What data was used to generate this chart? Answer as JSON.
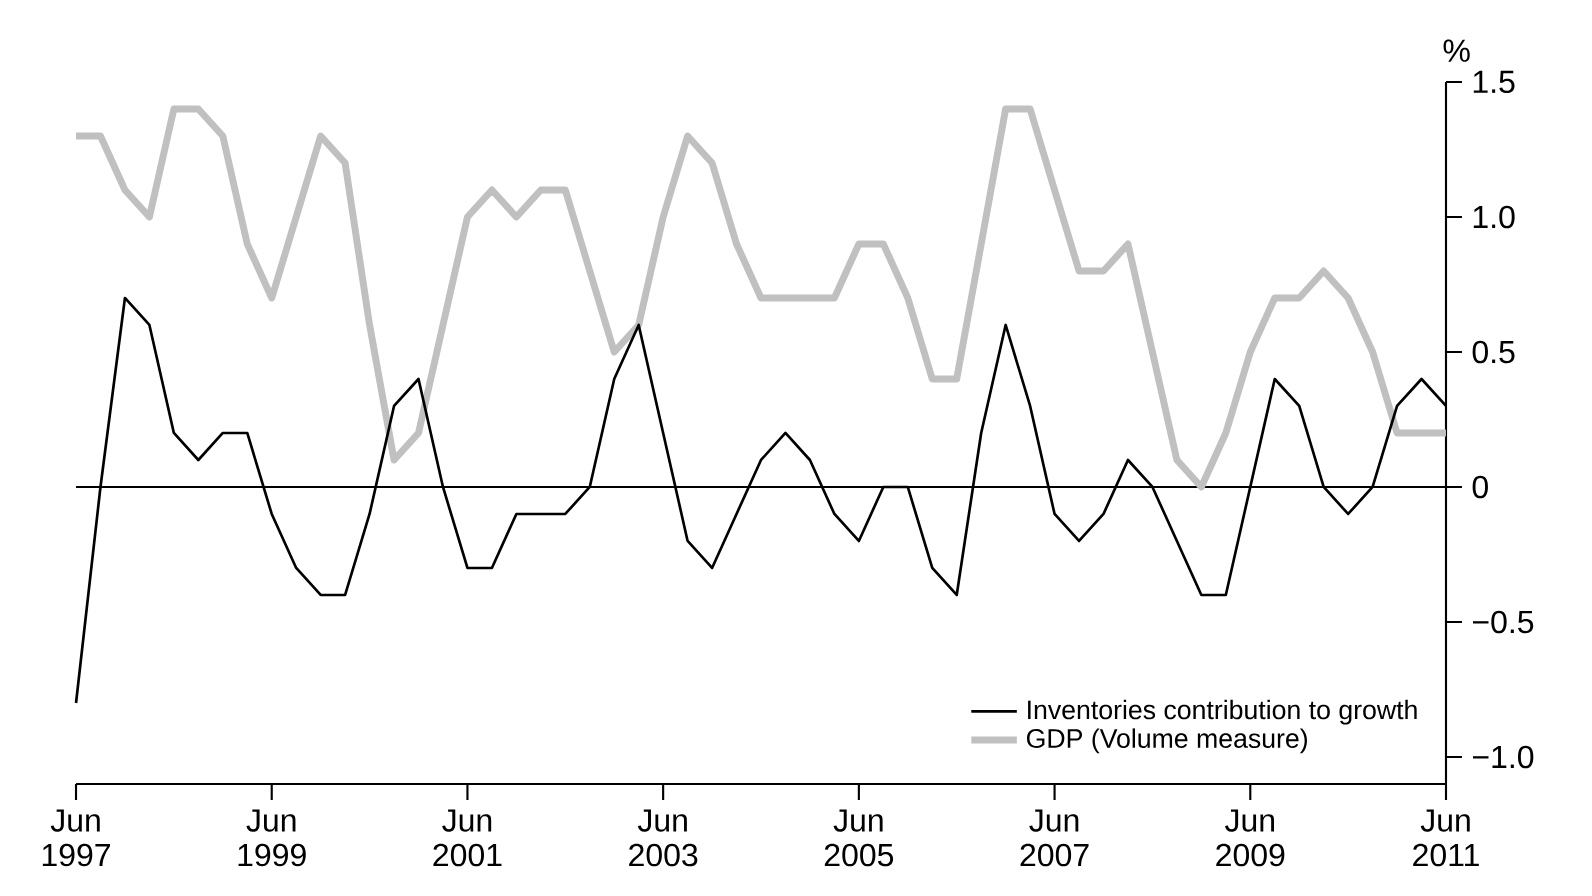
{
  "chart_data": {
    "type": "line",
    "x": [
      "1997-06",
      "1997-09",
      "1997-12",
      "1998-03",
      "1998-06",
      "1998-09",
      "1998-12",
      "1999-03",
      "1999-06",
      "1999-09",
      "1999-12",
      "2000-03",
      "2000-06",
      "2000-09",
      "2000-12",
      "2001-03",
      "2001-06",
      "2001-09",
      "2001-12",
      "2002-03",
      "2002-06",
      "2002-09",
      "2002-12",
      "2003-03",
      "2003-06",
      "2003-09",
      "2003-12",
      "2004-03",
      "2004-06",
      "2004-09",
      "2004-12",
      "2005-03",
      "2005-06",
      "2005-09",
      "2005-12",
      "2006-03",
      "2006-06",
      "2006-09",
      "2006-12",
      "2007-03",
      "2007-06",
      "2007-09",
      "2007-12",
      "2008-03",
      "2008-06",
      "2008-09",
      "2008-12",
      "2009-03",
      "2009-06",
      "2009-09",
      "2009-12",
      "2010-03",
      "2010-06",
      "2010-09",
      "2010-12",
      "2011-03",
      "2011-06"
    ],
    "series": [
      {
        "name": "Inventories contribution to growth",
        "color": "#000000",
        "values": [
          -0.8,
          0.0,
          0.7,
          0.6,
          0.2,
          0.1,
          0.2,
          0.2,
          -0.1,
          -0.3,
          -0.4,
          -0.4,
          -0.1,
          0.3,
          0.4,
          0.0,
          -0.3,
          -0.3,
          -0.1,
          -0.1,
          -0.1,
          0.0,
          0.4,
          0.6,
          0.2,
          -0.2,
          -0.3,
          -0.1,
          0.1,
          0.2,
          0.1,
          -0.1,
          -0.2,
          0.0,
          0.0,
          -0.3,
          -0.4,
          0.2,
          0.6,
          0.3,
          -0.1,
          -0.2,
          -0.1,
          0.1,
          0.0,
          -0.2,
          -0.4,
          -0.4,
          0.0,
          0.4,
          0.3,
          0.0,
          -0.1,
          0.0,
          0.3,
          0.4,
          0.3
        ]
      },
      {
        "name": "GDP (Volume measure)",
        "color": "#c0c0c0",
        "values": [
          1.3,
          1.3,
          1.1,
          1.0,
          1.4,
          1.4,
          1.3,
          0.9,
          0.7,
          1.0,
          1.3,
          1.2,
          0.6,
          0.1,
          0.2,
          0.6,
          1.0,
          1.1,
          1.0,
          1.1,
          1.1,
          0.8,
          0.5,
          0.6,
          1.0,
          1.3,
          1.2,
          0.9,
          0.7,
          0.7,
          0.7,
          0.7,
          0.9,
          0.9,
          0.7,
          0.4,
          0.4,
          0.9,
          1.4,
          1.4,
          1.1,
          0.8,
          0.8,
          0.9,
          0.5,
          0.1,
          0.0,
          0.2,
          0.5,
          0.7,
          0.7,
          0.8,
          0.7,
          0.5,
          0.2,
          0.2,
          0.2
        ]
      }
    ],
    "ylabel": "%",
    "xlim": [
      "1997-06",
      "2011-06"
    ],
    "xticks": [
      {
        "value": "1997-06",
        "label": "Jun 1997"
      },
      {
        "value": "1999-06",
        "label": "Jun 1999"
      },
      {
        "value": "2001-06",
        "label": "Jun 2001"
      },
      {
        "value": "2003-06",
        "label": "Jun 2003"
      },
      {
        "value": "2005-06",
        "label": "Jun 2005"
      },
      {
        "value": "2007-06",
        "label": "Jun 2007"
      },
      {
        "value": "2009-06",
        "label": "Jun 2009"
      },
      {
        "value": "2011-06",
        "label": "Jun 2011"
      }
    ],
    "ylim": [
      -1.1,
      1.5
    ],
    "yticks": [
      {
        "value": -1.0,
        "label": "−1.0"
      },
      {
        "value": -0.5,
        "label": "−0.5"
      },
      {
        "value": 0,
        "label": "0"
      },
      {
        "value": 0.5,
        "label": "0.5"
      },
      {
        "value": 1.0,
        "label": "1.0"
      },
      {
        "value": 1.5,
        "label": "1.5"
      }
    ],
    "ref_lines": [
      {
        "axis": "y",
        "value": 0,
        "color": "#000000"
      }
    ],
    "legend": "bottom right",
    "grid": false,
    "marker": "none",
    "line_style": "solid"
  }
}
